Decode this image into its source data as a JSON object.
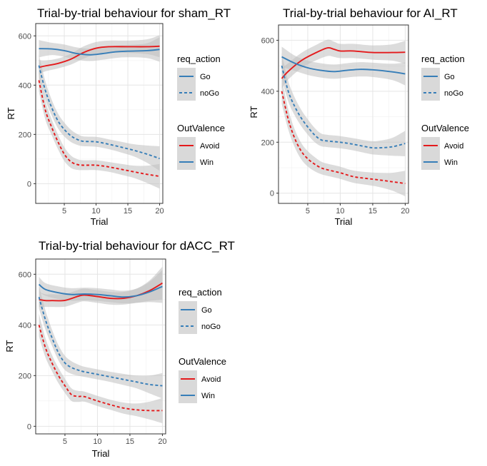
{
  "chart_data": [
    {
      "type": "line",
      "title": "Trial-by-trial behaviour for sham_RT",
      "xlabel": "Trial",
      "ylabel": "RT",
      "xlim": [
        0.5,
        20.5
      ],
      "ylim": [
        -80,
        650
      ],
      "xticks": [
        5,
        10,
        15,
        20
      ],
      "yticks": [
        0,
        200,
        400,
        600
      ],
      "grid": true,
      "legend_position": "right",
      "legends": [
        {
          "title": "req_action",
          "items": [
            {
              "label": "Go",
              "linetype": "solid"
            },
            {
              "label": "noGo",
              "linetype": "dashed"
            }
          ]
        },
        {
          "title": "OutValence",
          "items": [
            {
              "label": "Avoid",
              "color": "#e41a1c"
            },
            {
              "label": "Win",
              "color": "#377eb8"
            }
          ]
        }
      ],
      "series": [
        {
          "action": "Go",
          "valence": "Avoid",
          "color": "#e41a1c",
          "dash": false,
          "x": [
            1,
            2,
            4,
            6,
            8,
            10,
            12,
            15,
            18,
            20
          ],
          "y": [
            472,
            478,
            488,
            505,
            532,
            550,
            556,
            556,
            556,
            558
          ],
          "band": [
            30,
            22,
            20,
            22,
            25,
            25,
            25,
            25,
            30,
            45
          ]
        },
        {
          "action": "Go",
          "valence": "Win",
          "color": "#377eb8",
          "dash": false,
          "x": [
            1,
            3,
            5,
            7,
            9,
            11,
            13,
            15,
            18,
            20
          ],
          "y": [
            548,
            547,
            540,
            528,
            523,
            528,
            535,
            538,
            540,
            545
          ],
          "band": [
            35,
            25,
            25,
            25,
            25,
            25,
            25,
            25,
            30,
            50
          ]
        },
        {
          "action": "noGo",
          "valence": "Avoid",
          "color": "#e41a1c",
          "dash": true,
          "x": [
            1,
            2,
            3,
            4,
            5,
            6,
            7,
            8,
            10,
            12,
            14,
            16,
            18,
            20
          ],
          "y": [
            420,
            300,
            230,
            170,
            120,
            90,
            78,
            75,
            75,
            68,
            58,
            48,
            38,
            30
          ],
          "band": [
            45,
            38,
            32,
            30,
            28,
            25,
            22,
            20,
            20,
            20,
            22,
            25,
            35,
            50
          ]
        },
        {
          "action": "noGo",
          "valence": "Win",
          "color": "#377eb8",
          "dash": true,
          "x": [
            1,
            2,
            3,
            4,
            5,
            6,
            7,
            8,
            10,
            12,
            14,
            16,
            18,
            20
          ],
          "y": [
            480,
            380,
            310,
            255,
            220,
            195,
            180,
            172,
            170,
            160,
            148,
            135,
            120,
            102
          ],
          "band": [
            45,
            38,
            32,
            30,
            28,
            25,
            22,
            20,
            20,
            20,
            22,
            25,
            35,
            50
          ]
        }
      ]
    },
    {
      "type": "line",
      "title": "Trial-by-trial behaviour for AI_RT",
      "xlabel": "Trial",
      "ylabel": "RT",
      "xlim": [
        0.5,
        20.5
      ],
      "ylim": [
        -40,
        660
      ],
      "xticks": [
        5,
        10,
        15,
        20
      ],
      "yticks": [
        0,
        200,
        400,
        600
      ],
      "grid": true,
      "legend_position": "right",
      "legends": [
        {
          "title": "req_action",
          "items": [
            {
              "label": "Go",
              "linetype": "solid"
            },
            {
              "label": "noGo",
              "linetype": "dashed"
            }
          ]
        },
        {
          "title": "OutValence",
          "items": [
            {
              "label": "Avoid",
              "color": "#e41a1c"
            },
            {
              "label": "Win",
              "color": "#377eb8"
            }
          ]
        }
      ],
      "series": [
        {
          "action": "Go",
          "valence": "Avoid",
          "color": "#e41a1c",
          "dash": false,
          "x": [
            1,
            2,
            4,
            6,
            8,
            9,
            10,
            12,
            15,
            18,
            20
          ],
          "y": [
            450,
            478,
            520,
            548,
            570,
            565,
            558,
            558,
            552,
            552,
            553
          ],
          "band": [
            40,
            32,
            30,
            30,
            32,
            30,
            28,
            28,
            28,
            32,
            45
          ]
        },
        {
          "action": "Go",
          "valence": "Win",
          "color": "#377eb8",
          "dash": false,
          "x": [
            1,
            3,
            5,
            7,
            9,
            11,
            13,
            15,
            18,
            20
          ],
          "y": [
            535,
            510,
            492,
            482,
            477,
            482,
            486,
            484,
            476,
            468
          ],
          "band": [
            40,
            30,
            28,
            28,
            28,
            28,
            28,
            28,
            32,
            45
          ]
        },
        {
          "action": "noGo",
          "valence": "Avoid",
          "color": "#e41a1c",
          "dash": true,
          "x": [
            1,
            2,
            3,
            4,
            5,
            6,
            7,
            8,
            10,
            12,
            14,
            16,
            18,
            20
          ],
          "y": [
            400,
            290,
            215,
            165,
            135,
            115,
            100,
            92,
            80,
            65,
            58,
            52,
            45,
            38
          ],
          "band": [
            50,
            40,
            35,
            32,
            30,
            28,
            25,
            24,
            24,
            24,
            25,
            28,
            35,
            50
          ]
        },
        {
          "action": "noGo",
          "valence": "Win",
          "color": "#377eb8",
          "dash": true,
          "x": [
            1,
            2,
            3,
            4,
            5,
            6,
            7,
            8,
            10,
            12,
            14,
            15,
            16,
            18,
            20
          ],
          "y": [
            500,
            400,
            340,
            295,
            260,
            230,
            210,
            205,
            200,
            192,
            182,
            178,
            178,
            182,
            195
          ],
          "band": [
            50,
            40,
            35,
            32,
            30,
            28,
            25,
            24,
            24,
            24,
            25,
            26,
            28,
            35,
            50
          ]
        }
      ]
    },
    {
      "type": "line",
      "title": "Trial-by-trial behaviour for dACC_RT",
      "xlabel": "Trial",
      "ylabel": "RT",
      "xlim": [
        0.5,
        20.5
      ],
      "ylim": [
        -30,
        660
      ],
      "xticks": [
        5,
        10,
        15,
        20
      ],
      "yticks": [
        0,
        200,
        400,
        600
      ],
      "grid": true,
      "legend_position": "right",
      "legends": [
        {
          "title": "req_action",
          "items": [
            {
              "label": "Go",
              "linetype": "solid"
            },
            {
              "label": "noGo",
              "linetype": "dashed"
            }
          ]
        },
        {
          "title": "OutValence",
          "items": [
            {
              "label": "Avoid",
              "color": "#e41a1c"
            },
            {
              "label": "Win",
              "color": "#377eb8"
            }
          ]
        }
      ],
      "series": [
        {
          "action": "Go",
          "valence": "Avoid",
          "color": "#e41a1c",
          "dash": false,
          "x": [
            1,
            2,
            3,
            5,
            7,
            8,
            10,
            12,
            14,
            16,
            18,
            20
          ],
          "y": [
            500,
            496,
            496,
            497,
            513,
            518,
            512,
            505,
            505,
            515,
            535,
            565
          ],
          "band": [
            30,
            25,
            25,
            25,
            25,
            25,
            25,
            25,
            25,
            28,
            40,
            65
          ]
        },
        {
          "action": "Go",
          "valence": "Win",
          "color": "#377eb8",
          "dash": false,
          "x": [
            1,
            2,
            4,
            6,
            8,
            10,
            12,
            14,
            16,
            18,
            20
          ],
          "y": [
            560,
            540,
            527,
            520,
            522,
            520,
            515,
            510,
            515,
            530,
            552
          ],
          "band": [
            30,
            25,
            25,
            25,
            25,
            25,
            25,
            25,
            28,
            40,
            65
          ]
        },
        {
          "action": "noGo",
          "valence": "Avoid",
          "color": "#e41a1c",
          "dash": true,
          "x": [
            1,
            2,
            3,
            4,
            5,
            6,
            7,
            8,
            10,
            12,
            14,
            16,
            18,
            20
          ],
          "y": [
            400,
            310,
            250,
            200,
            160,
            125,
            118,
            117,
            100,
            85,
            72,
            65,
            62,
            62
          ],
          "band": [
            45,
            38,
            32,
            30,
            28,
            25,
            22,
            20,
            20,
            20,
            22,
            25,
            35,
            50
          ]
        },
        {
          "action": "noGo",
          "valence": "Win",
          "color": "#377eb8",
          "dash": true,
          "x": [
            1,
            2,
            3,
            4,
            5,
            6,
            7,
            8,
            10,
            12,
            14,
            16,
            18,
            20
          ],
          "y": [
            510,
            420,
            350,
            290,
            250,
            232,
            222,
            215,
            205,
            195,
            185,
            175,
            165,
            160
          ],
          "band": [
            45,
            38,
            32,
            30,
            28,
            25,
            22,
            20,
            20,
            20,
            22,
            25,
            35,
            50
          ]
        }
      ]
    }
  ]
}
